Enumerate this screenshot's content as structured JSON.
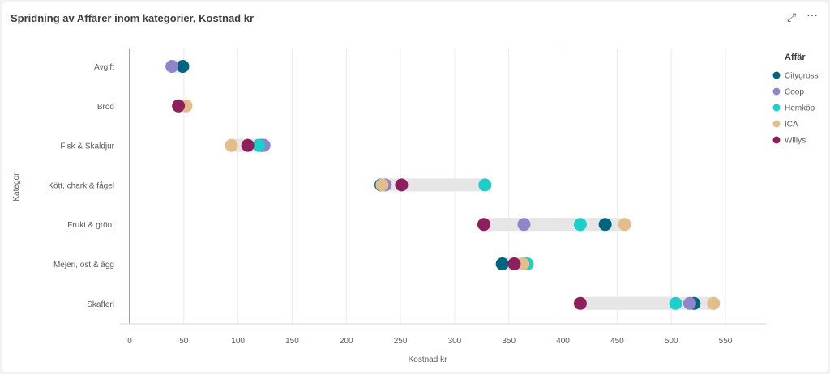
{
  "header": {
    "title": "Spridning av Affärer inom kategorier, Kostnad kr",
    "expand_icon": "expand-icon",
    "more_icon": "more-icon"
  },
  "chart_data": {
    "type": "scatter",
    "title": "Spridning av Affärer inom kategorier, Kostnad kr",
    "xlabel": "Kostnad kr",
    "ylabel": "Kategori",
    "xlim": [
      0,
      590
    ],
    "xticks": [
      0,
      50,
      100,
      150,
      200,
      250,
      300,
      350,
      400,
      450,
      500,
      550
    ],
    "categories": [
      "Avgift",
      "Bröd",
      "Fisk & Skaldjur",
      "Kött, chark & fågel",
      "Frukt & grönt",
      "Mejeri, ost & ägg",
      "Skafferi"
    ],
    "legend": {
      "title": "Affär",
      "position": "right"
    },
    "grid": true,
    "series": [
      {
        "name": "Citygross",
        "color": "#006580",
        "values": [
          49,
          null,
          122,
          232,
          439,
          344,
          521
        ]
      },
      {
        "name": "Coop",
        "color": "#8e86c9",
        "values": [
          39,
          null,
          124,
          236,
          364,
          365,
          517
        ]
      },
      {
        "name": "Hemköp",
        "color": "#1ccfc9",
        "values": [
          null,
          null,
          119,
          328,
          416,
          367,
          504
        ]
      },
      {
        "name": "ICA",
        "color": "#e3be8c",
        "values": [
          null,
          52,
          94,
          233,
          457,
          363,
          539
        ]
      },
      {
        "name": "Willys",
        "color": "#8e1f5e",
        "values": [
          null,
          45,
          109,
          251,
          327,
          355,
          416
        ]
      }
    ]
  }
}
